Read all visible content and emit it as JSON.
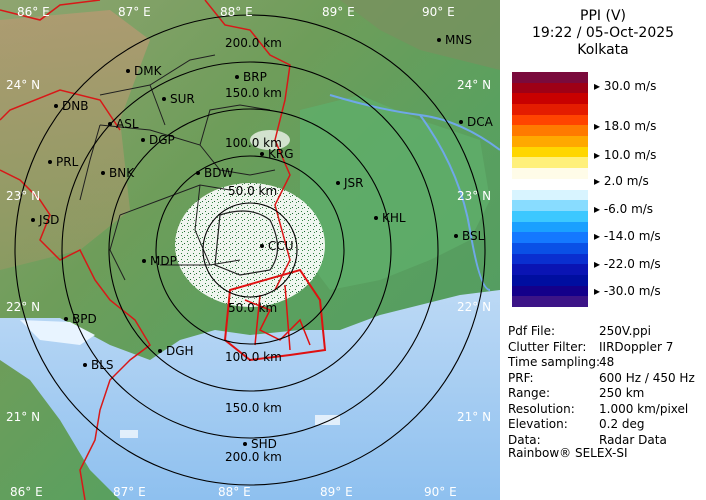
{
  "header": {
    "product": "PPI (V)",
    "datetime": "19:22 / 05-Oct-2025",
    "station": "Kolkata"
  },
  "color_scale": {
    "labels": [
      "30.0 m/s",
      "18.0 m/s",
      "10.0 m/s",
      "2.0 m/s",
      "-6.0 m/s",
      "-14.0 m/s",
      "-22.0 m/s",
      "-30.0 m/s"
    ],
    "colors": [
      "#7a0a3c",
      "#9e0016",
      "#c80000",
      "#e41c00",
      "#ff4400",
      "#ff7a00",
      "#ffa800",
      "#ffd600",
      "#fff07a",
      "#fffce8",
      "#ffffff",
      "#d8f4ff",
      "#88dcff",
      "#3cc8ff",
      "#1aa0ff",
      "#1478ff",
      "#0a50e6",
      "#0a2fd0",
      "#0a14b4",
      "#000ea0",
      "#14008a",
      "#3c1487"
    ]
  },
  "info": [
    {
      "key": "Pdf File:",
      "value": "250V.ppi"
    },
    {
      "key": "Clutter Filter:",
      "value": "IIRDoppler 7"
    },
    {
      "key": "Time sampling:",
      "value": "48"
    },
    {
      "key": "PRF:",
      "value": "600 Hz / 450 Hz"
    },
    {
      "key": "Range:",
      "value": "250 km"
    },
    {
      "key": "Resolution:",
      "value": "1.000 km/pixel"
    },
    {
      "key": "Elevation:",
      "value": "0.2 deg"
    },
    {
      "key": "Data:",
      "value": "Radar Data"
    }
  ],
  "footer": "Rainbow® SELEX-SI",
  "map": {
    "lon_labels": [
      "86° E",
      "87° E",
      "88° E",
      "89° E",
      "90° E"
    ],
    "lat_labels": [
      "24° N",
      "23° N",
      "22° N",
      "21° N"
    ],
    "range_rings": [
      "50.0 km",
      "100.0 km",
      "150.0 km",
      "200.0 km"
    ],
    "cities": [
      {
        "name": "MNS"
      },
      {
        "name": "DMK"
      },
      {
        "name": "BRP"
      },
      {
        "name": "SUR"
      },
      {
        "name": "DNB"
      },
      {
        "name": "ASL"
      },
      {
        "name": "DCA"
      },
      {
        "name": "DGP"
      },
      {
        "name": "PRL"
      },
      {
        "name": "BNK"
      },
      {
        "name": "BDW"
      },
      {
        "name": "JSR"
      },
      {
        "name": "KHL"
      },
      {
        "name": "JSD"
      },
      {
        "name": "BSL"
      },
      {
        "name": "MDP"
      },
      {
        "name": "BPD"
      },
      {
        "name": "DGH"
      },
      {
        "name": "BLS"
      },
      {
        "name": "SHD"
      },
      {
        "name": "CCU"
      },
      {
        "name": "KRG"
      }
    ]
  }
}
